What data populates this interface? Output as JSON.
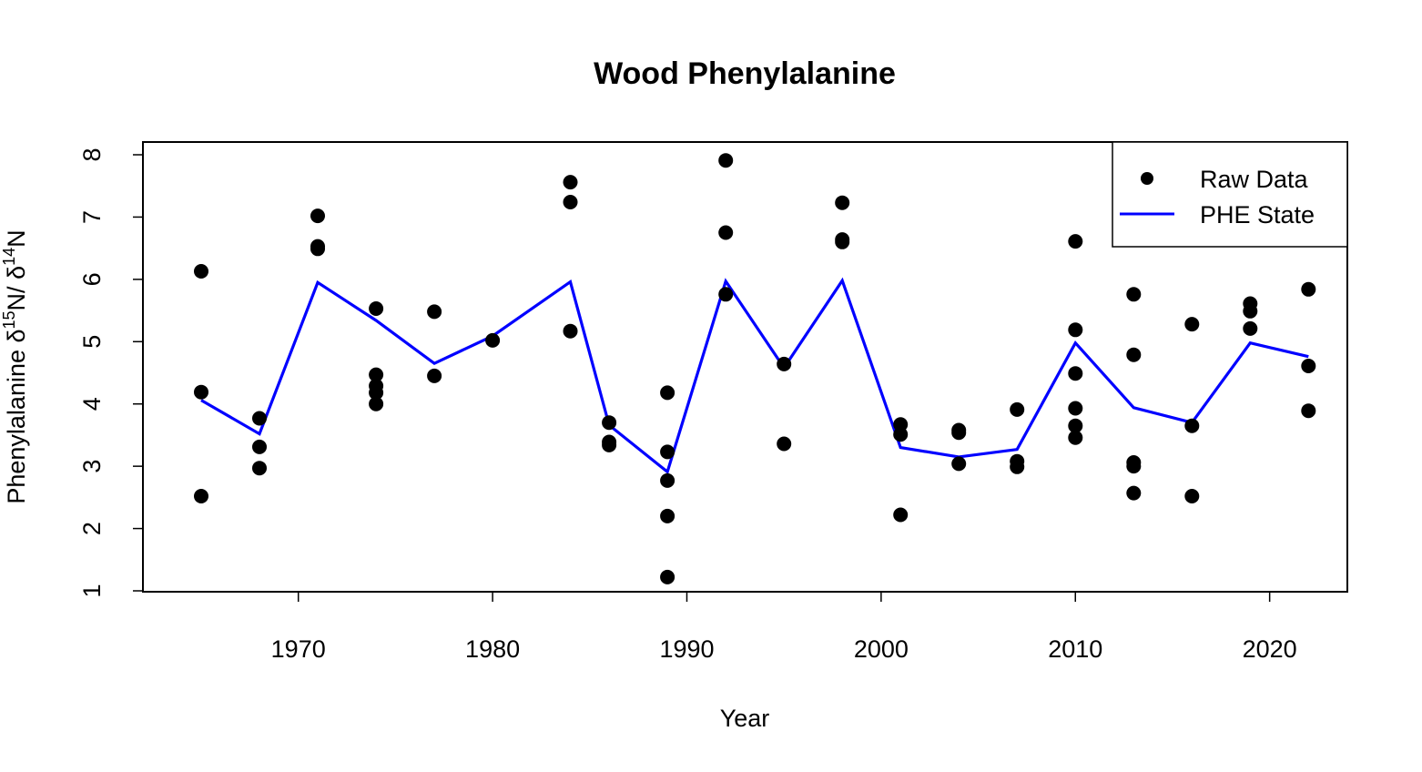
{
  "chart_data": {
    "type": "scatter",
    "title": "Wood Phenylalanine",
    "xlabel": "Year",
    "ylabel": {
      "prefix": "Phenylalanine ",
      "delta1": "δ",
      "sup1": "15",
      "mid": "N/ ",
      "delta2": "δ",
      "sup2": "14",
      "suffix": "N"
    },
    "xlim": [
      1962,
      2024
    ],
    "ylim": [
      1,
      8.2
    ],
    "x_ticks": [
      1970,
      1980,
      1990,
      2000,
      2010,
      2020
    ],
    "y_ticks": [
      1,
      2,
      3,
      4,
      5,
      6,
      7,
      8
    ],
    "legend": {
      "position": "top-right",
      "entries": [
        "Raw Data",
        "PHE State"
      ]
    },
    "colors": {
      "points": "#000000",
      "line": "#0000ff",
      "frame": "#000000",
      "background": "#ffffff"
    },
    "series": [
      {
        "name": "Raw Data",
        "style": "points",
        "points": [
          [
            1965,
            6.13
          ],
          [
            1965,
            4.19
          ],
          [
            1965,
            2.52
          ],
          [
            1968,
            3.77
          ],
          [
            1968,
            3.31
          ],
          [
            1968,
            2.97
          ],
          [
            1971,
            7.02
          ],
          [
            1971,
            6.53
          ],
          [
            1971,
            6.49
          ],
          [
            1974,
            5.53
          ],
          [
            1974,
            4.47
          ],
          [
            1974,
            4.29
          ],
          [
            1974,
            4.18
          ],
          [
            1974,
            4.0
          ],
          [
            1977,
            5.48
          ],
          [
            1977,
            4.45
          ],
          [
            1980,
            5.02
          ],
          [
            1984,
            7.56
          ],
          [
            1984,
            7.24
          ],
          [
            1984,
            5.17
          ],
          [
            1986,
            3.7
          ],
          [
            1986,
            3.39
          ],
          [
            1986,
            3.34
          ],
          [
            1989,
            4.18
          ],
          [
            1989,
            3.23
          ],
          [
            1989,
            2.77
          ],
          [
            1989,
            2.2
          ],
          [
            1989,
            1.22
          ],
          [
            1992,
            7.91
          ],
          [
            1992,
            6.75
          ],
          [
            1992,
            5.76
          ],
          [
            1995,
            4.64
          ],
          [
            1995,
            3.36
          ],
          [
            1998,
            7.23
          ],
          [
            1998,
            6.64
          ],
          [
            1998,
            6.6
          ],
          [
            2001,
            3.67
          ],
          [
            2001,
            3.51
          ],
          [
            2001,
            2.22
          ],
          [
            2004,
            3.58
          ],
          [
            2004,
            3.54
          ],
          [
            2004,
            3.04
          ],
          [
            2007,
            3.91
          ],
          [
            2007,
            3.08
          ],
          [
            2007,
            2.99
          ],
          [
            2010,
            6.61
          ],
          [
            2010,
            5.19
          ],
          [
            2010,
            4.49
          ],
          [
            2010,
            3.93
          ],
          [
            2010,
            3.65
          ],
          [
            2010,
            3.46
          ],
          [
            2013,
            5.76
          ],
          [
            2013,
            4.79
          ],
          [
            2013,
            3.06
          ],
          [
            2013,
            3.0
          ],
          [
            2013,
            2.57
          ],
          [
            2016,
            5.28
          ],
          [
            2016,
            3.65
          ],
          [
            2016,
            2.52
          ],
          [
            2019,
            5.61
          ],
          [
            2019,
            5.49
          ],
          [
            2019,
            5.21
          ],
          [
            2022,
            5.84
          ],
          [
            2022,
            4.61
          ],
          [
            2022,
            3.89
          ]
        ]
      },
      {
        "name": "PHE State",
        "style": "line",
        "x": [
          1965,
          1968,
          1971,
          1974,
          1977,
          1980,
          1984,
          1986,
          1989,
          1992,
          1995,
          1998,
          2001,
          2004,
          2007,
          2010,
          2013,
          2016,
          2019,
          2022
        ],
        "y": [
          4.06,
          3.52,
          5.95,
          5.34,
          4.65,
          5.09,
          5.96,
          3.66,
          2.91,
          5.97,
          4.58,
          5.98,
          3.3,
          3.15,
          3.27,
          4.98,
          3.94,
          3.7,
          4.98,
          4.76
        ]
      }
    ]
  }
}
